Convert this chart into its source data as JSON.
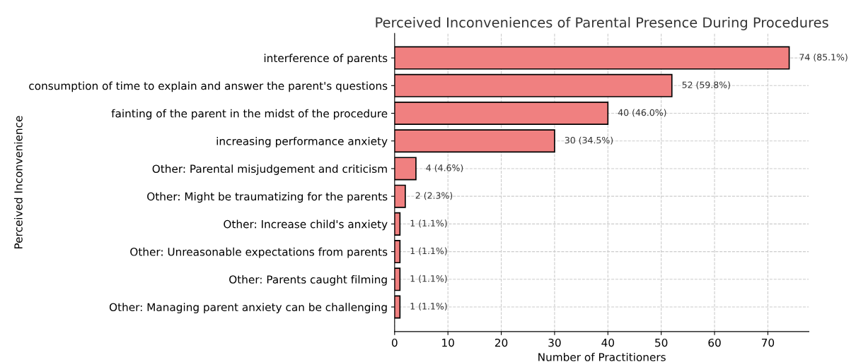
{
  "chart_data": {
    "type": "bar",
    "orientation": "horizontal",
    "title": "Perceived Inconveniences of Parental Presence During Procedures",
    "xlabel": "Number of Practitioners",
    "ylabel": "Perceived Inconvenience",
    "categories": [
      "interference of parents",
      "consumption of time to explain and answer the parent's questions",
      "fainting of the parent in the midst of the procedure",
      "increasing performance anxiety",
      "Other: Parental misjudgement and criticism",
      "Other: Might be traumatizing for the parents",
      "Other: Increase child's anxiety",
      "Other: Unreasonable expectations from parents",
      "Other: Parents caught filming",
      "Other: Managing parent anxiety can be challenging"
    ],
    "values": [
      74,
      52,
      40,
      30,
      4,
      2,
      1,
      1,
      1,
      1
    ],
    "value_labels": [
      "74 (85.1%)",
      "52 (59.8%)",
      "40 (46.0%)",
      "30 (34.5%)",
      "4 (4.6%)",
      "2 (2.3%)",
      "1 (1.1%)",
      "1 (1.1%)",
      "1 (1.1%)",
      "1 (1.1%)"
    ],
    "color": "#f08080",
    "xlim": [
      0,
      77.7
    ],
    "xticks": [
      0,
      10,
      20,
      30,
      40,
      50,
      60,
      70
    ],
    "grid": true
  }
}
